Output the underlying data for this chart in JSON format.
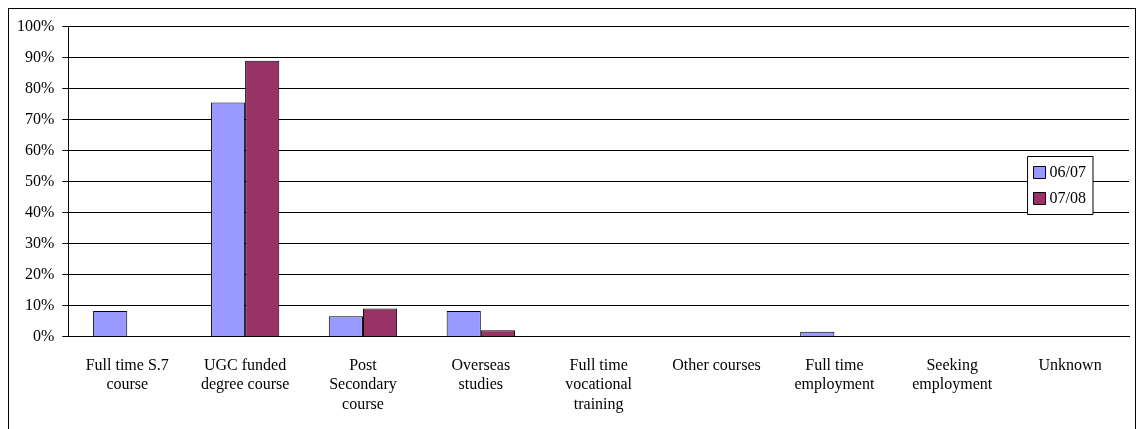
{
  "chart_data": {
    "type": "bar",
    "categories": [
      "Full time S.7 course",
      "UGC funded degree course",
      "Post Secondary course",
      "Overseas studies",
      "Full time vocational training",
      "Other courses",
      "Full time employment",
      "Seeking employment",
      "Unknown"
    ],
    "series": [
      {
        "name": "06/07",
        "color": "#9999ff",
        "values": [
          8.2,
          75.5,
          6.5,
          8.2,
          0,
          0,
          1.5,
          0,
          0
        ]
      },
      {
        "name": "07/08",
        "color": "#993366",
        "values": [
          0,
          89,
          9,
          2,
          0,
          0,
          0,
          0,
          0
        ]
      }
    ],
    "ylim": [
      0,
      100
    ],
    "yticks": [
      {
        "value": 0,
        "label": "0%"
      },
      {
        "value": 10,
        "label": "10%"
      },
      {
        "value": 20,
        "label": "20%"
      },
      {
        "value": 30,
        "label": "30%"
      },
      {
        "value": 40,
        "label": "40%"
      },
      {
        "value": 50,
        "label": "50%"
      },
      {
        "value": 60,
        "label": "60%"
      },
      {
        "value": 70,
        "label": "70%"
      },
      {
        "value": 80,
        "label": "80%"
      },
      {
        "value": 90,
        "label": "90%"
      },
      {
        "value": 100,
        "label": "100%"
      }
    ],
    "grid": "y",
    "legend": "right"
  }
}
